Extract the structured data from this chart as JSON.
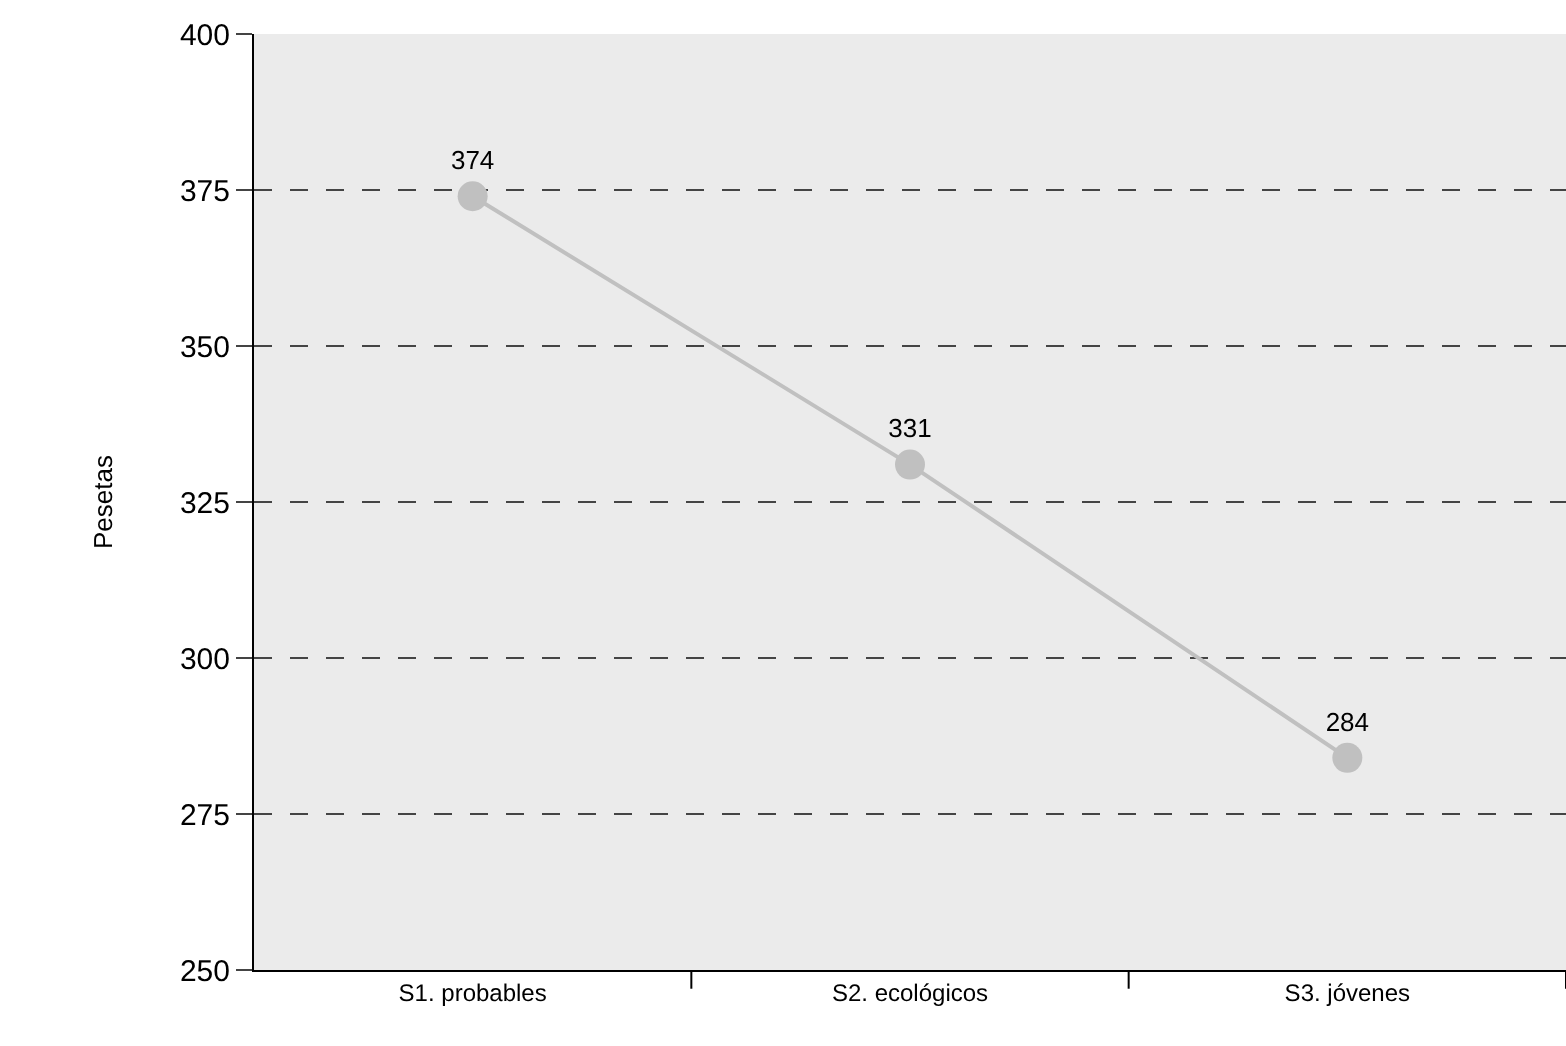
{
  "chart_data": {
    "type": "line",
    "ylabel": "Pesetas",
    "categories": [
      "S1. probables",
      "S2. ecológicos",
      "S3. jóvenes"
    ],
    "series": [
      {
        "color": "#c0c0c0",
        "values": [
          374,
          331,
          284
        ]
      }
    ],
    "ylim": [
      250,
      400
    ],
    "yticks": [
      250,
      275,
      300,
      325,
      350,
      375,
      400
    ],
    "grid": "y",
    "marker": "circle",
    "line_style": "solid",
    "data_labels": true,
    "legend": false
  }
}
